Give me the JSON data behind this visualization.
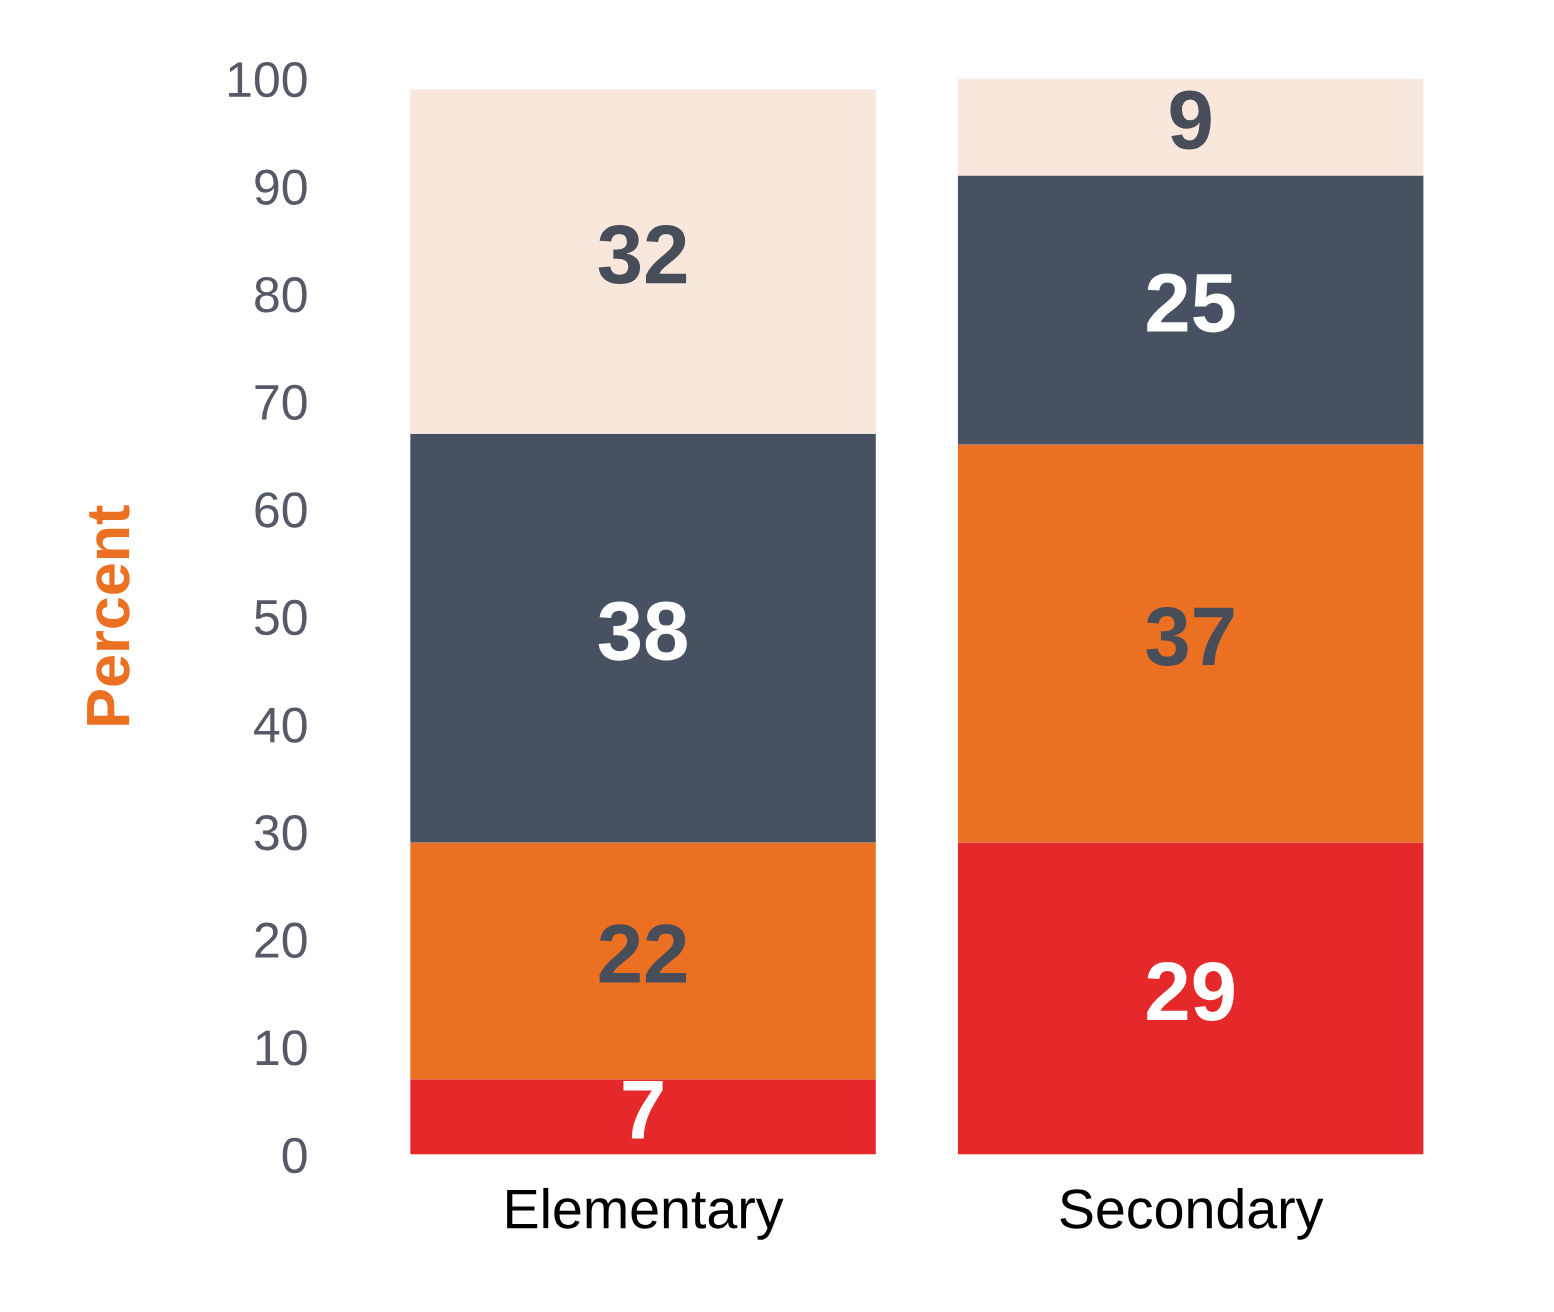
{
  "chart_data": {
    "type": "bar",
    "stacked": true,
    "ylabel": "Percent",
    "categories": [
      "Elementary",
      "Secondary"
    ],
    "series": [
      {
        "color": "#e5282a",
        "values": [
          7,
          29
        ]
      },
      {
        "color": "#ec7022",
        "values": [
          22,
          37
        ]
      },
      {
        "color": "#485161",
        "values": [
          38,
          25
        ]
      },
      {
        "color": "#f9e6dc",
        "values": [
          32,
          9
        ]
      }
    ],
    "ylim": [
      0,
      100
    ],
    "yticks": [
      0,
      10,
      20,
      30,
      40,
      50,
      60,
      70,
      80,
      90,
      100
    ],
    "grid": false,
    "legend": false,
    "data_labels": true
  }
}
